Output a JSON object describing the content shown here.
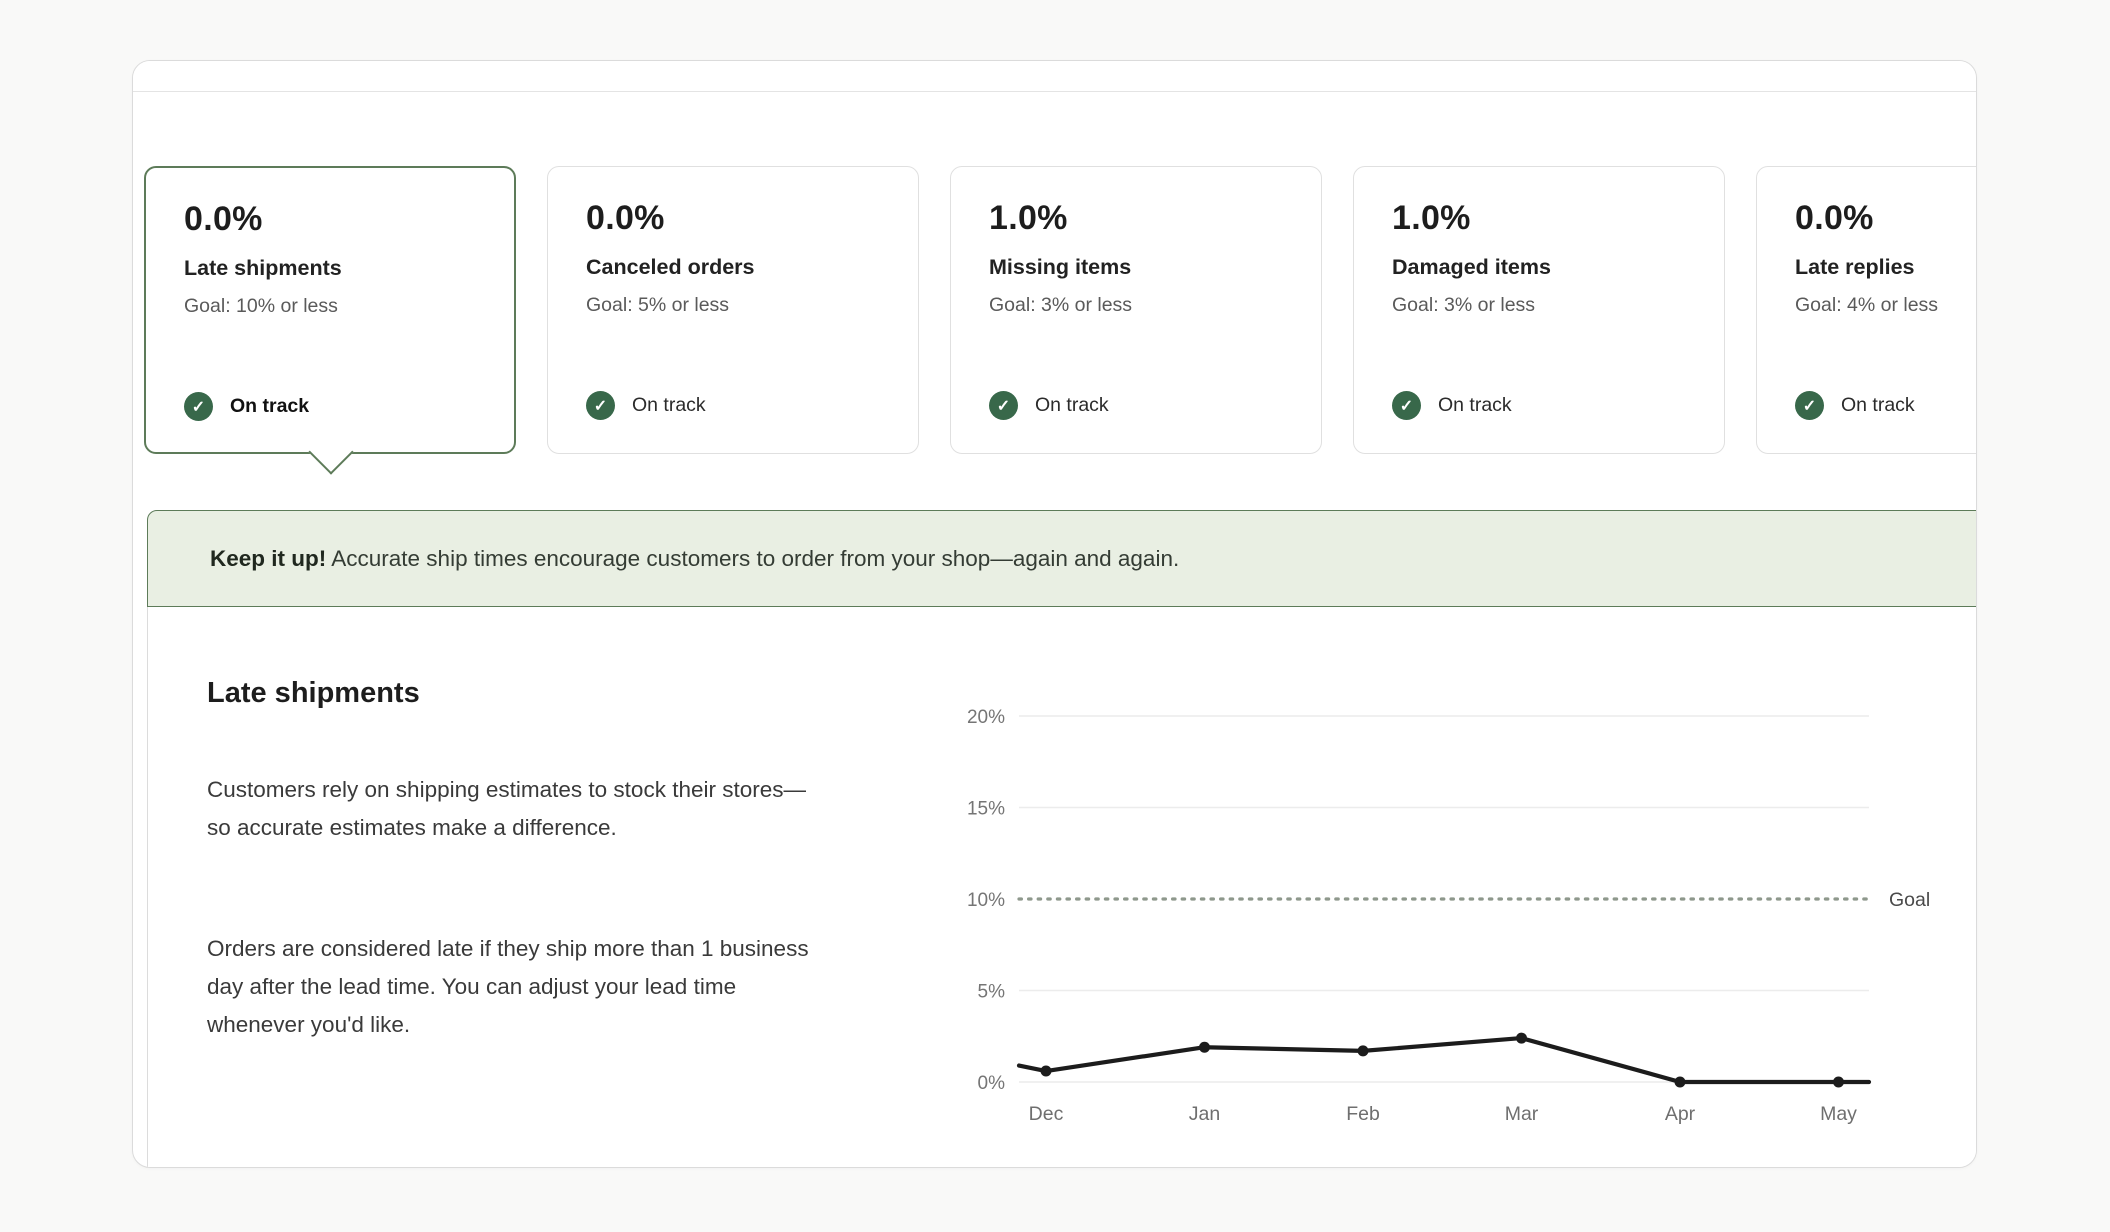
{
  "colors": {
    "accent_green": "#38684a",
    "selected_border_green": "#5d7b59",
    "banner_bg": "#e9efe3",
    "goal_dots": "#8e988c",
    "line_color": "#1c1c1c",
    "gridline": "#ececec"
  },
  "cards": [
    {
      "value": "0.0%",
      "label": "Late shipments",
      "goal": "Goal: 10% or less",
      "status": "On track",
      "selected": true
    },
    {
      "value": "0.0%",
      "label": "Canceled orders",
      "goal": "Goal: 5% or less",
      "status": "On track",
      "selected": false
    },
    {
      "value": "1.0%",
      "label": "Missing items",
      "goal": "Goal: 3% or less",
      "status": "On track",
      "selected": false
    },
    {
      "value": "1.0%",
      "label": "Damaged items",
      "goal": "Goal: 3% or less",
      "status": "On track",
      "selected": false
    },
    {
      "value": "0.0%",
      "label": "Late replies",
      "goal": "Goal: 4% or less",
      "status": "On track",
      "selected": false
    }
  ],
  "status_icon": "check-circle-icon",
  "check_glyph": "✓",
  "banner": {
    "bold_text": "Keep it up!",
    "body_text": "Accurate ship times encourage customers to order from your shop—again and again."
  },
  "detail": {
    "title": "Late shipments",
    "paragraph1": "Customers rely on shipping estimates to stock their stores—so accurate estimates make a difference.",
    "paragraph2": "Orders are considered late if they ship more than 1 business day after the lead time. You can adjust your lead time whenever you'd like."
  },
  "chart_data": {
    "type": "line",
    "title": "",
    "categories": [
      "Dec",
      "Jan",
      "Feb",
      "Mar",
      "Apr",
      "May"
    ],
    "values": [
      0.6,
      1.9,
      1.7,
      2.4,
      0.0,
      0.0
    ],
    "lead_in_value": 0.9,
    "lead_out_value": 0.0,
    "goal_value": 10,
    "goal_label": "Goal",
    "yticks": [
      0,
      5,
      10,
      15,
      20
    ],
    "ytick_suffix": "%",
    "ylim": [
      0,
      20
    ],
    "grid": true,
    "legend_position": "none",
    "xlabel": "",
    "ylabel": ""
  }
}
